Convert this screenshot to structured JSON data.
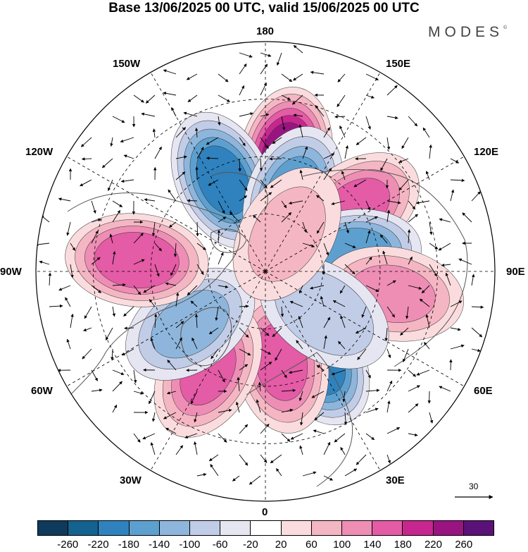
{
  "title": "Base 13/06/2025 00 UTC, valid 15/06/2025 00 UTC",
  "brand": "MODES",
  "brand_mark": "©",
  "longitude_labels": {
    "top": "180",
    "top_left": "150W",
    "top_right": "150E",
    "upper_left": "120W",
    "upper_right": "120E",
    "left": "90W",
    "right": "90E",
    "lower_left": "60W",
    "lower_right": "60E",
    "bottom_left": "30W",
    "bottom_right": "30E",
    "bottom": "0"
  },
  "reference_vector": {
    "value": "30"
  },
  "colorbar": {
    "colors": [
      "#0f3a5c",
      "#14628f",
      "#2f82bd",
      "#5da0cf",
      "#8eb6dc",
      "#c1cce6",
      "#e6e6f2",
      "#ffffff",
      "#fbdcde",
      "#f5b6c3",
      "#ee8eb5",
      "#e45ba6",
      "#c8268f",
      "#9a1481",
      "#5b1278"
    ],
    "tick_labels": [
      "-260",
      "-220",
      "-180",
      "-140",
      "-100",
      "-60",
      "-20",
      "20",
      "60",
      "100",
      "140",
      "180",
      "220",
      "260"
    ]
  },
  "anomaly_centers": [
    {
      "lon": 170,
      "lat": 50,
      "value": 240
    },
    {
      "lon": -155,
      "lat": 55,
      "value": -190
    },
    {
      "lon": 160,
      "lat": 62,
      "value": -160
    },
    {
      "lon": 125,
      "lat": 52,
      "value": 150
    },
    {
      "lon": 100,
      "lat": 60,
      "value": -170
    },
    {
      "lon": 80,
      "lat": 45,
      "value": 110
    },
    {
      "lon": 30,
      "lat": 55,
      "value": -210
    },
    {
      "lon": 10,
      "lat": 58,
      "value": 150
    },
    {
      "lon": -30,
      "lat": 50,
      "value": 140
    },
    {
      "lon": -55,
      "lat": 58,
      "value": -110
    },
    {
      "lon": -95,
      "lat": 45,
      "value": 170
    },
    {
      "lon": 55,
      "lat": 65,
      "value": -90
    },
    {
      "lon": 150,
      "lat": 75,
      "value": 70
    }
  ]
}
